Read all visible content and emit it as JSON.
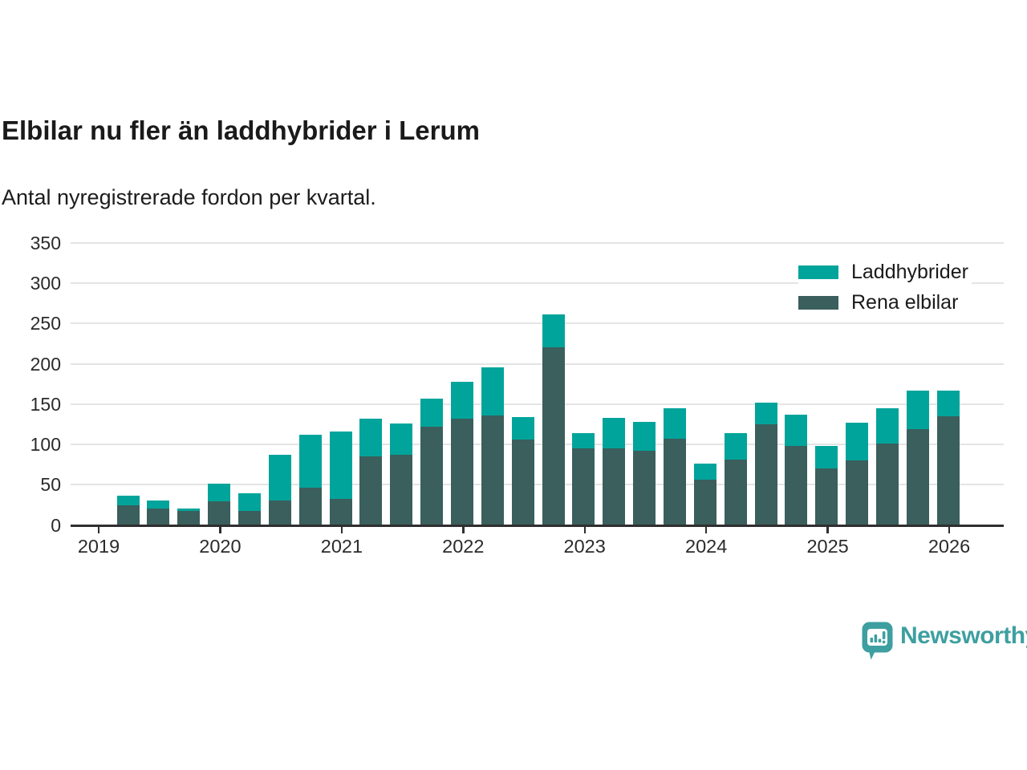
{
  "chart_data": {
    "type": "bar",
    "stacked": true,
    "title": "Elbilar nu fler än laddhybrider i Lerum",
    "subtitle": "Antal nyregistrerade fordon per kvartal.",
    "xlabel": "",
    "ylabel": "",
    "ylim": [
      0,
      350
    ],
    "ytick_step": 50,
    "grid": true,
    "legend_position": "top-right",
    "categories": [
      "2019 Q2",
      "2019 Q3",
      "2019 Q4",
      "2020 Q1",
      "2020 Q2",
      "2020 Q3",
      "2020 Q4",
      "2021 Q1",
      "2021 Q2",
      "2021 Q3",
      "2021 Q4",
      "2022 Q1",
      "2022 Q2",
      "2022 Q3",
      "2022 Q4",
      "2023 Q1",
      "2023 Q2",
      "2023 Q3",
      "2023 Q4",
      "2024 Q1",
      "2024 Q2",
      "2024 Q3",
      "2024 Q4",
      "2025 Q1",
      "2025 Q2",
      "2025 Q3",
      "2025 Q4",
      "2026 Q1"
    ],
    "x_tick_labels": [
      "2019",
      "2020",
      "2021",
      "2022",
      "2023",
      "2024",
      "2025",
      "2026"
    ],
    "series": [
      {
        "name": "Laddhybrider",
        "color": "#00a49b",
        "values": [
          12,
          10,
          3,
          22,
          22,
          57,
          66,
          84,
          47,
          39,
          35,
          46,
          60,
          28,
          41,
          19,
          38,
          36,
          38,
          20,
          33,
          27,
          39,
          28,
          47,
          44,
          48,
          32
        ]
      },
      {
        "name": "Rena elbilar",
        "color": "#3a5f5c",
        "values": [
          24,
          20,
          17,
          29,
          17,
          30,
          46,
          32,
          85,
          87,
          122,
          132,
          136,
          106,
          220,
          95,
          95,
          92,
          107,
          56,
          81,
          125,
          98,
          70,
          80,
          101,
          119,
          135
        ]
      }
    ]
  },
  "footer": {
    "brand": "Newsworthy",
    "brand_color": "#3e9fa0"
  },
  "icons": {
    "logo": "newsworthy-speech-bubble-bar-chart-icon"
  }
}
